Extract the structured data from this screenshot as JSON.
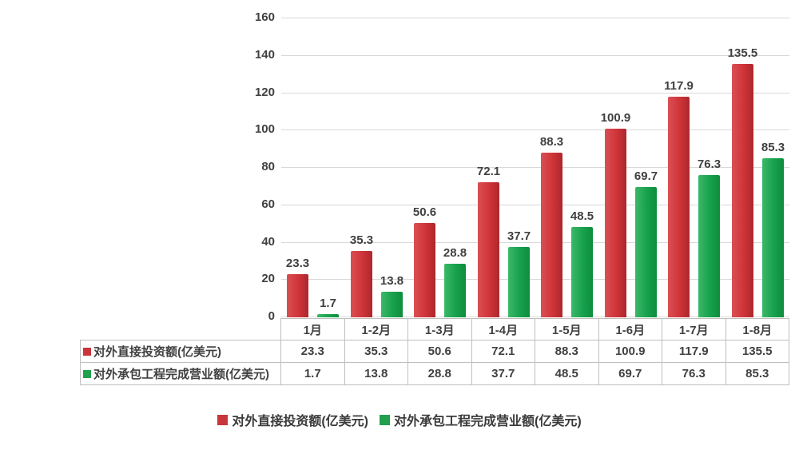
{
  "chart_data": {
    "type": "bar",
    "title": "",
    "xlabel": "",
    "ylabel": "",
    "categories": [
      "1月",
      "1-2月",
      "1-3月",
      "1-4月",
      "1-5月",
      "1-6月",
      "1-7月",
      "1-8月"
    ],
    "series": [
      {
        "name": "对外直接投资额(亿美元)",
        "color": "#c8363b",
        "values": [
          23.3,
          35.3,
          50.6,
          72.1,
          88.3,
          100.9,
          117.9,
          135.5
        ]
      },
      {
        "name": "对外承包工程完成营业额(亿美元)",
        "color": "#21a04e",
        "values": [
          1.7,
          13.8,
          28.8,
          37.7,
          48.5,
          69.7,
          76.3,
          85.3
        ]
      }
    ],
    "ylim": [
      0,
      160
    ],
    "yticks": [
      0,
      20,
      40,
      60,
      80,
      100,
      120,
      140,
      160
    ],
    "grid": true,
    "data_labels_shown": true,
    "legend_position": "bottom",
    "data_table_shown": true
  },
  "colors": {
    "series_red": "#c8363b",
    "series_green": "#21a04e",
    "gridline": "#d9d9d9",
    "table_border": "#bfbfbf",
    "text": "#404040",
    "background": "#ffffff"
  }
}
